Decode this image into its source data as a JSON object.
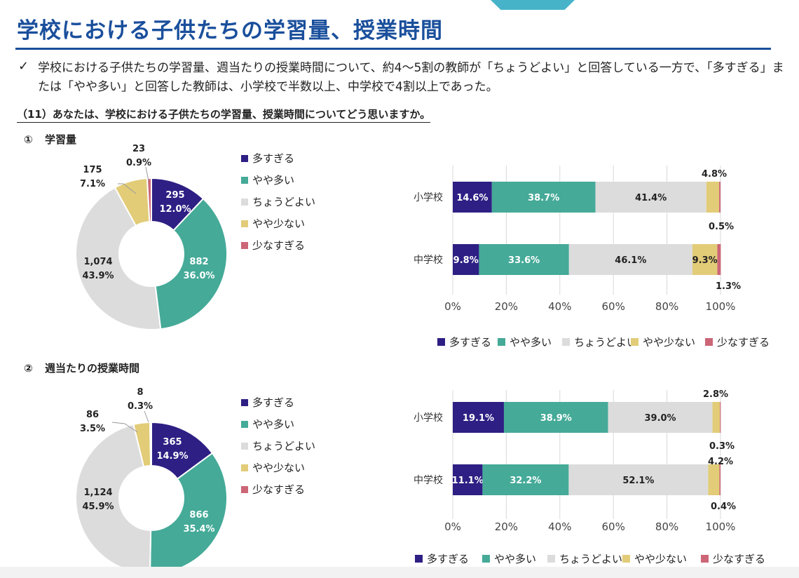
{
  "title": "学校における子供たちの学習量、授業時間",
  "summary_check": "✓",
  "summary": "学校における子供たちの学習量、週当たりの授業時間について、約4～5割の教師が「ちょうどよい」と回答している一方で、「多すぎる」または「やや多い」と回答した教師は、小学校で半数以上、中学校で4割以上であった。",
  "question": "（11）あなたは、学校における子供たちの学習量、授業時間についてどう思いますか。",
  "colors": {
    "多すぎる": "#2e1f84",
    "やや多い": "#45aa98",
    "ちょうどよい": "#dcdcdc",
    "やや少ない": "#e2cc78",
    "少なすぎる": "#cc6677"
  },
  "sections": [
    {
      "number": "①",
      "label": "学習量"
    },
    {
      "number": "②",
      "label": "週当たりの授業時間"
    }
  ],
  "chart_data": [
    {
      "type": "pie",
      "subtype": "donut",
      "title": "学習量",
      "categories": [
        "多すぎる",
        "やや多い",
        "ちょうどよい",
        "やや少ない",
        "少なすぎる"
      ],
      "counts": [
        "295",
        "882",
        "1,074",
        "175",
        "23"
      ],
      "percents": [
        "12.0%",
        "36.0%",
        "43.9%",
        "7.1%",
        "0.9%"
      ],
      "values": [
        12.0,
        36.0,
        43.9,
        7.1,
        0.9
      ],
      "legend": [
        "多すぎる",
        "やや多い",
        "ちょうどよい",
        "やや少ない",
        "少なすぎる"
      ]
    },
    {
      "type": "bar",
      "orientation": "horizontal",
      "stacked": true,
      "title": "学習量",
      "categories": [
        "小学校",
        "中学校"
      ],
      "series": [
        {
          "name": "多すぎる",
          "values": [
            14.6,
            9.8
          ],
          "labels": [
            "14.6%",
            "9.8%"
          ]
        },
        {
          "name": "やや多い",
          "values": [
            38.7,
            33.6
          ],
          "labels": [
            "38.7%",
            "33.6%"
          ]
        },
        {
          "name": "ちょうどよい",
          "values": [
            41.4,
            46.1
          ],
          "labels": [
            "41.4%",
            "46.1%"
          ]
        },
        {
          "name": "やや少ない",
          "values": [
            4.8,
            9.3
          ],
          "labels": [
            "4.8%",
            "9.3%"
          ]
        },
        {
          "name": "少なすぎる",
          "values": [
            0.5,
            1.3
          ],
          "labels": [
            "0.5%",
            "1.3%"
          ]
        }
      ],
      "xticks": [
        "0%",
        "20%",
        "40%",
        "60%",
        "80%",
        "100%"
      ],
      "xlim": [
        0,
        100
      ]
    },
    {
      "type": "pie",
      "subtype": "donut",
      "title": "週当たりの授業時間",
      "categories": [
        "多すぎる",
        "やや多い",
        "ちょうどよい",
        "やや少ない",
        "少なすぎる"
      ],
      "counts": [
        "365",
        "866",
        "1,124",
        "86",
        "8"
      ],
      "percents": [
        "14.9%",
        "35.4%",
        "45.9%",
        "3.5%",
        "0.3%"
      ],
      "values": [
        14.9,
        35.4,
        45.9,
        3.5,
        0.3
      ],
      "legend": [
        "多すぎる",
        "やや多い",
        "ちょうどよい",
        "やや少ない",
        "少なすぎる"
      ]
    },
    {
      "type": "bar",
      "orientation": "horizontal",
      "stacked": true,
      "title": "週当たりの授業時間",
      "categories": [
        "小学校",
        "中学校"
      ],
      "series": [
        {
          "name": "多すぎる",
          "values": [
            19.1,
            11.1
          ],
          "labels": [
            "19.1%",
            "11.1%"
          ]
        },
        {
          "name": "やや多い",
          "values": [
            38.9,
            32.2
          ],
          "labels": [
            "38.9%",
            "32.2%"
          ]
        },
        {
          "name": "ちょうどよい",
          "values": [
            39.0,
            52.1
          ],
          "labels": [
            "39.0%",
            "52.1%"
          ]
        },
        {
          "name": "やや少ない",
          "values": [
            2.8,
            4.2
          ],
          "labels": [
            "2.8%",
            "4.2%"
          ]
        },
        {
          "name": "少なすぎる",
          "values": [
            0.3,
            0.4
          ],
          "labels": [
            "0.3%",
            "0.4%"
          ]
        }
      ],
      "xticks": [
        "0%",
        "20%",
        "40%",
        "60%",
        "80%",
        "100%"
      ],
      "xlim": [
        0,
        100
      ]
    }
  ]
}
